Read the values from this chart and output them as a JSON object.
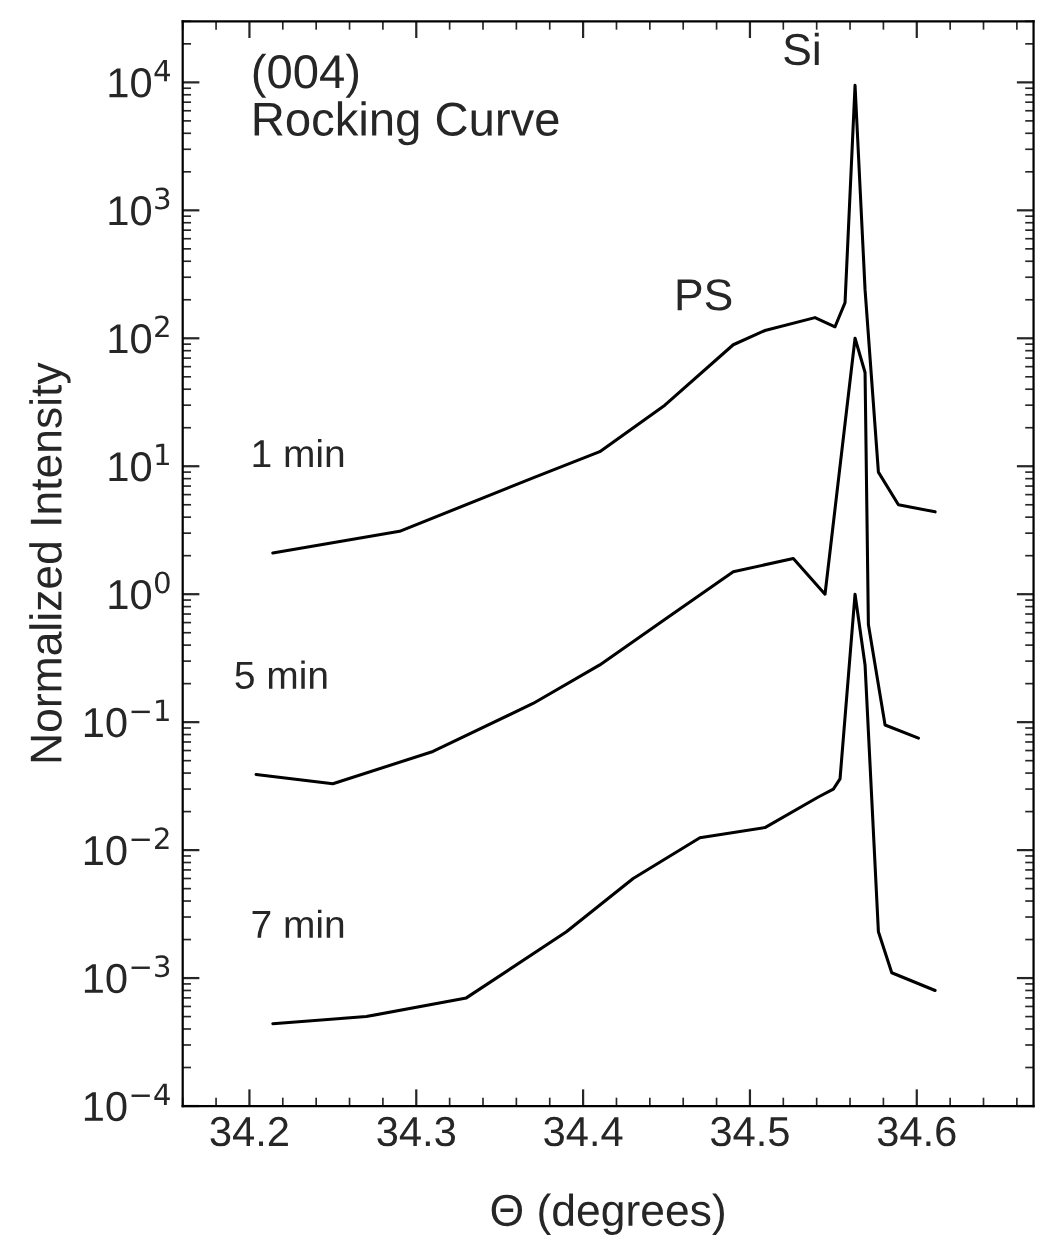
{
  "chart_data": {
    "type": "line",
    "xlabel": "Θ (degrees)",
    "ylabel": "Normalized Intensity",
    "log": "y",
    "xlim": [
      34.16,
      34.67
    ],
    "xticks": [
      34.2,
      34.3,
      34.4,
      34.5,
      34.6
    ],
    "ylim": [
      0.0001,
      30000
    ],
    "yticks": [
      {
        "value": 0.0001,
        "label": "10$^{−4}$"
      },
      {
        "value": 0.001,
        "label": "10$^{−3}$"
      },
      {
        "value": 0.01,
        "label": "10$^{−2}$"
      },
      {
        "value": 0.1,
        "label": "10$^{−1}$"
      },
      {
        "value": 1,
        "label": "10$^{0}$"
      },
      {
        "value": 10,
        "label": "10$^{1}$"
      },
      {
        "value": 100,
        "label": "10$^{2}$"
      },
      {
        "value": 1000,
        "label": "10$^{3}$"
      },
      {
        "value": 10000,
        "label": "10$^{4}$"
      }
    ],
    "grid": false,
    "legend": false,
    "marker": "none",
    "line_style": "solid",
    "series": [
      {
        "name": "1 min",
        "color": "#000000",
        "x": [
          34.214,
          34.29,
          34.37,
          34.41,
          34.449,
          34.49,
          34.509,
          34.539,
          34.551,
          34.557,
          34.563,
          34.569,
          34.577,
          34.589,
          34.611
        ],
        "values": [
          2.1,
          3.1,
          8.1,
          13,
          30,
          89,
          115,
          145,
          123,
          190,
          9500,
          240,
          9,
          5,
          4.4
        ]
      },
      {
        "name": "5 min",
        "color": "#000000",
        "x": [
          34.204,
          34.25,
          34.31,
          34.37,
          34.41,
          34.45,
          34.49,
          34.526,
          34.545,
          34.563,
          34.569,
          34.571,
          34.581,
          34.601
        ],
        "values": [
          0.039,
          0.033,
          0.059,
          0.14,
          0.28,
          0.65,
          1.5,
          1.9,
          1.0,
          100,
          54,
          0.58,
          0.095,
          0.075
        ]
      },
      {
        "name": "7 min",
        "color": "#000000",
        "x": [
          34.214,
          34.27,
          34.33,
          34.39,
          34.43,
          34.47,
          34.509,
          34.541,
          34.55,
          34.554,
          34.563,
          34.569,
          34.577,
          34.585,
          34.611
        ],
        "values": [
          0.00044,
          0.0005,
          0.0007,
          0.0023,
          0.006,
          0.0125,
          0.015,
          0.026,
          0.03,
          0.036,
          1.0,
          0.28,
          0.0023,
          0.0011,
          0.0008
        ]
      }
    ],
    "annotations": [
      "(004)\nRocking Curve",
      {
        "text": "Si",
        "x": 34.563,
        "y": 9500
      },
      {
        "text": "PS",
        "x": 34.51,
        "y": 115
      }
    ]
  }
}
